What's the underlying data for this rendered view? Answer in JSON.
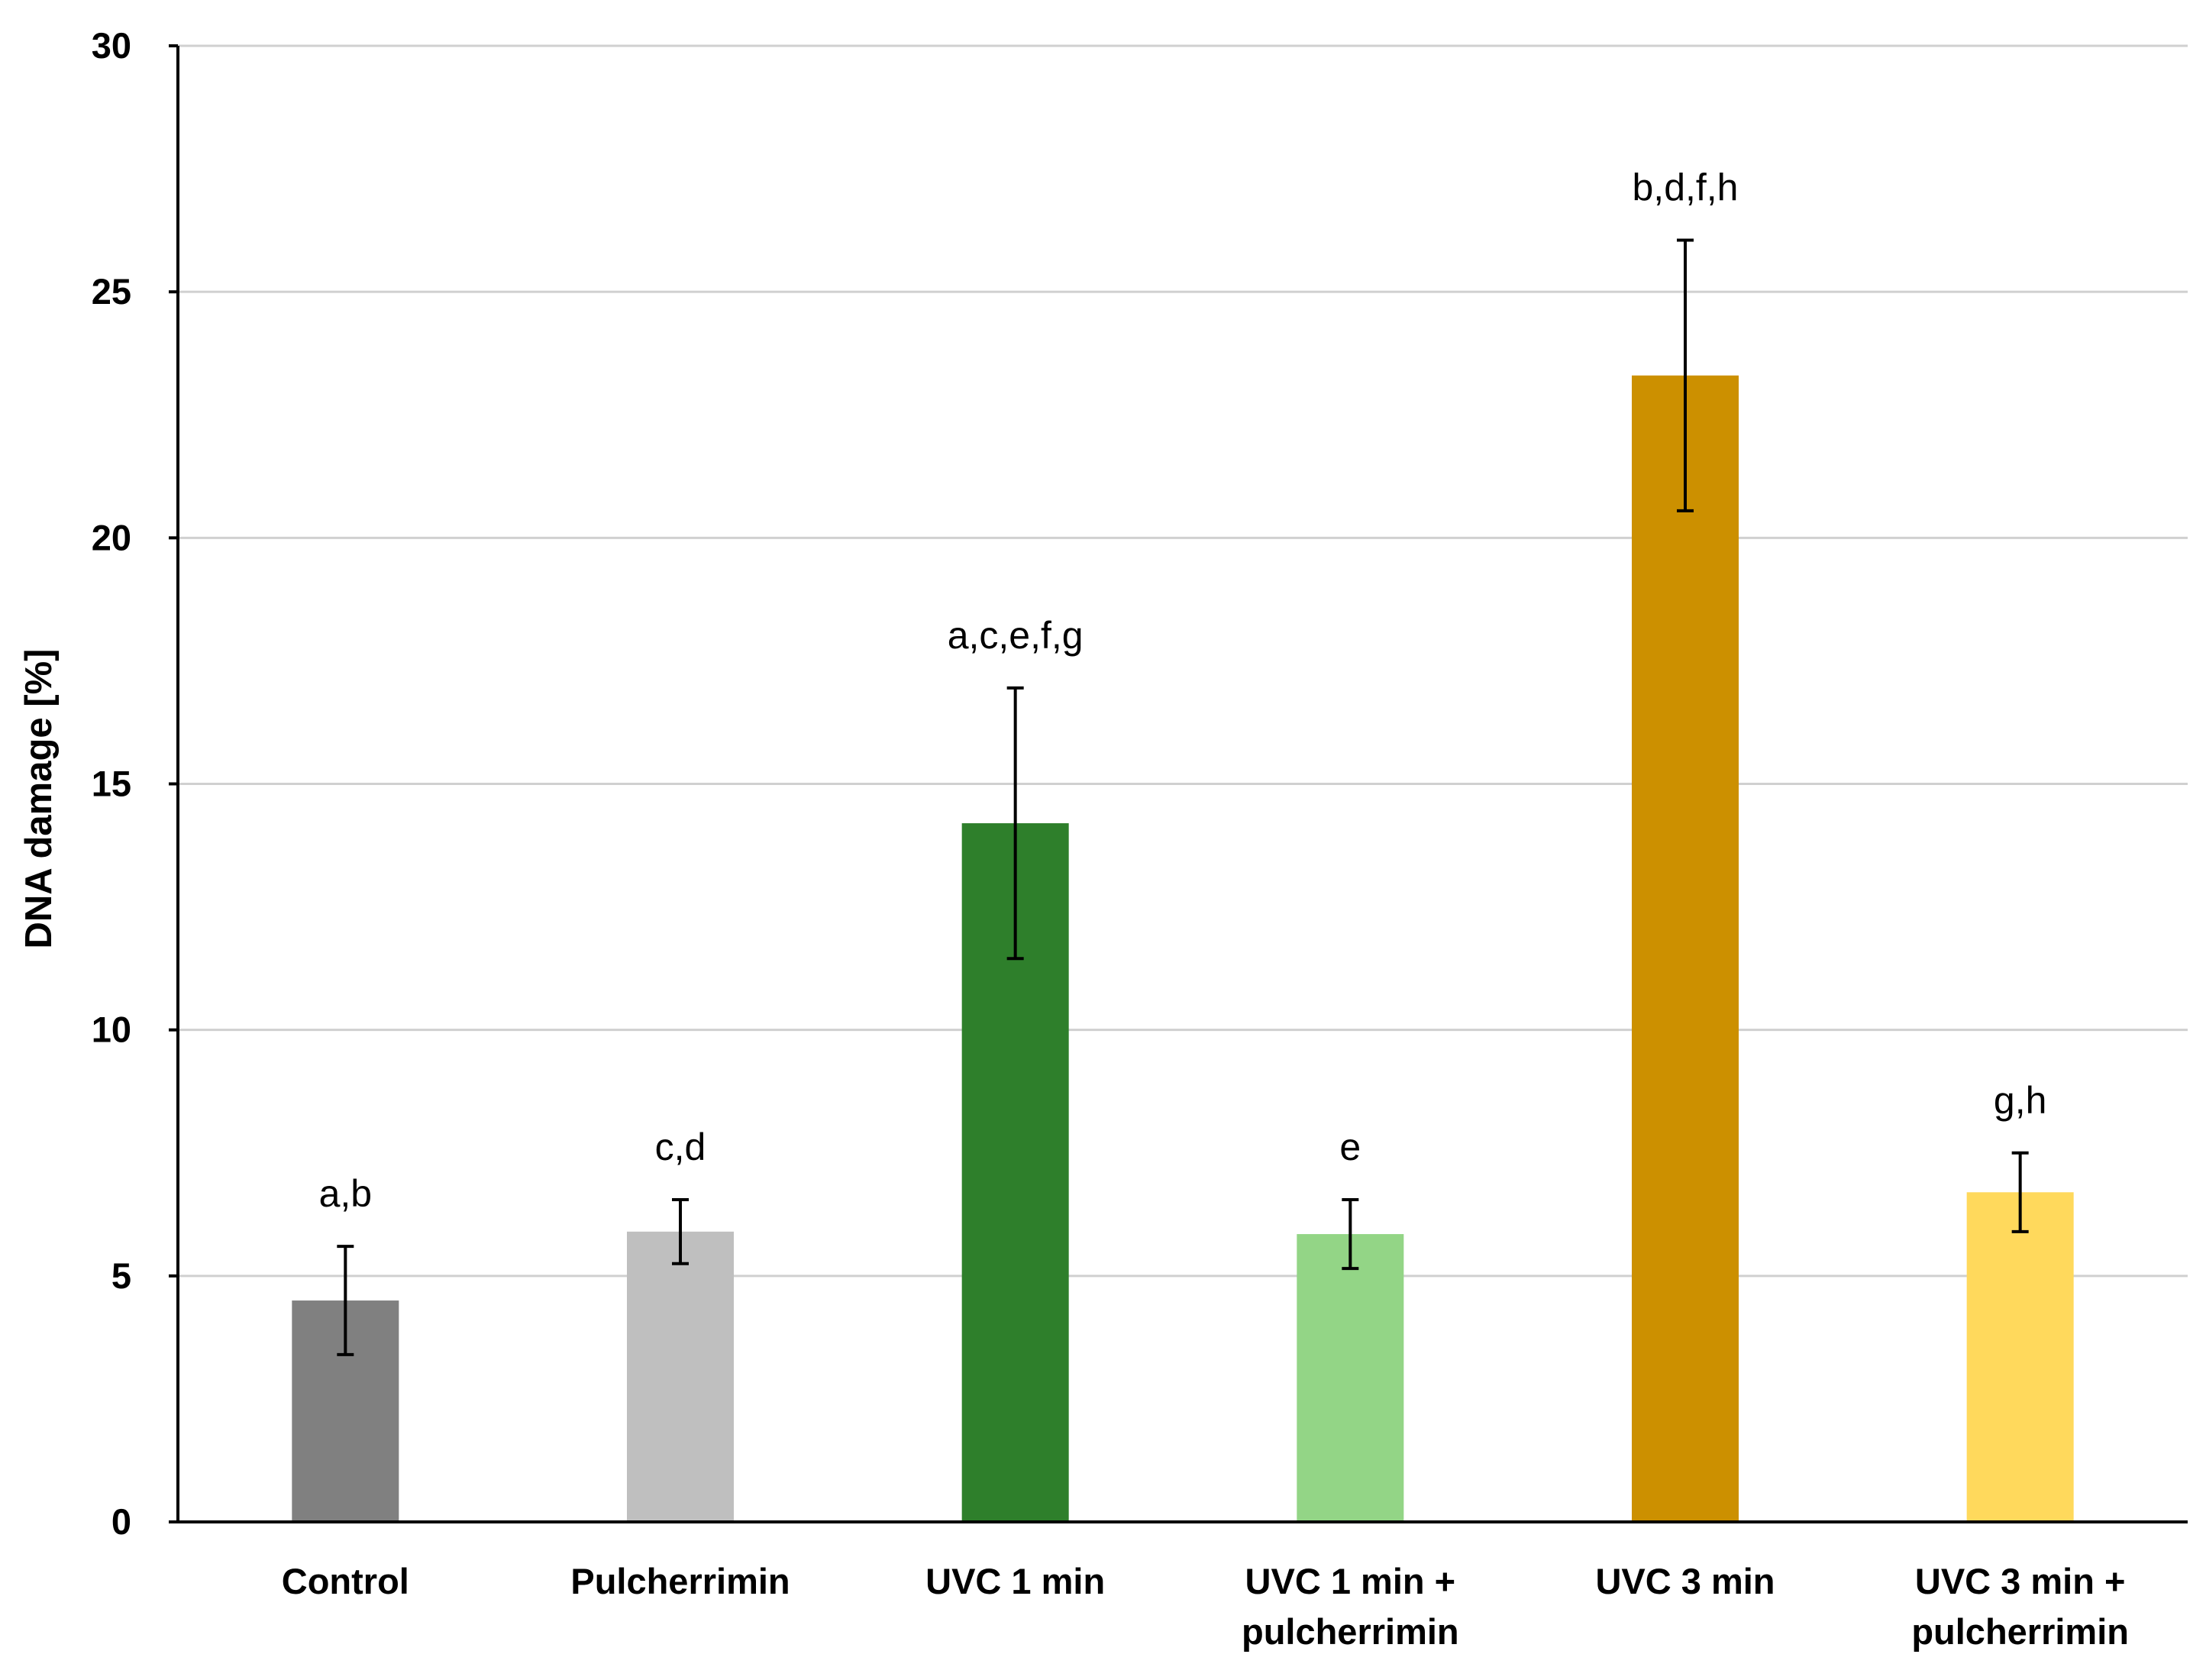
{
  "chart_data": {
    "type": "bar",
    "title": "",
    "xlabel": "",
    "ylabel": "DNA damage [%]",
    "ylim": [
      0,
      30
    ],
    "yticks": [
      0,
      5,
      10,
      15,
      20,
      25,
      30
    ],
    "grid": true,
    "categories": [
      [
        "Control"
      ],
      [
        "Pulcherrimin"
      ],
      [
        "UVC 1 min"
      ],
      [
        "UVC 1 min +",
        "pulcherrimin"
      ],
      [
        "UVC 3 min"
      ],
      [
        "UVC 3 min +",
        "pulcherrimin"
      ]
    ],
    "values": [
      4.5,
      5.9,
      14.2,
      5.85,
      23.3,
      6.7
    ],
    "errors": [
      1.1,
      0.65,
      2.75,
      0.7,
      2.75,
      0.8
    ],
    "significance_labels": [
      "a,b",
      "c,d",
      "a,c,e,f,g",
      "e",
      "b,d,f,h",
      "g,h"
    ],
    "colors": [
      "#808080",
      "#bfbfbf",
      "#2e7f2b",
      "#93d586",
      "#cc9000",
      "#ffd95c"
    ]
  }
}
